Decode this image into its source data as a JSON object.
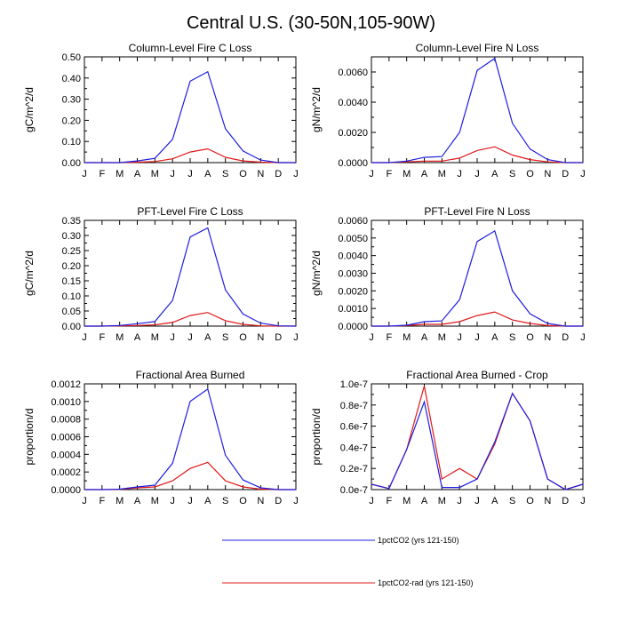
{
  "title": "Central U.S. (30-50N,105-90W)",
  "legend": [
    {
      "label": "1pctCO2 (yrs 121-150)",
      "color": "#1f1fdf"
    },
    {
      "label": "1pctCO2-rad (yrs 121-150)",
      "color": "#e01818"
    }
  ],
  "chart_data": [
    {
      "type": "line",
      "title": "Column-Level Fire C Loss",
      "ylabel": "gC/m^2/d",
      "xticks": [
        "J",
        "F",
        "M",
        "A",
        "M",
        "J",
        "J",
        "A",
        "S",
        "O",
        "N",
        "D",
        "J"
      ],
      "yticks": [
        "0.00",
        "0.10",
        "0.20",
        "0.30",
        "0.40",
        "0.50"
      ],
      "ylim": [
        0,
        0.5
      ],
      "series": [
        {
          "name": "1pctCO2 (yrs 121-150)",
          "color": "#1f1fdf",
          "values": [
            0,
            0,
            0,
            0.008,
            0.02,
            0.11,
            0.385,
            0.43,
            0.16,
            0.055,
            0.012,
            0,
            0
          ]
        },
        {
          "name": "1pctCO2-rad (yrs 121-150)",
          "color": "#e01818",
          "values": [
            0,
            0,
            0,
            0.002,
            0.005,
            0.018,
            0.05,
            0.065,
            0.025,
            0.008,
            0.002,
            0,
            0
          ]
        }
      ]
    },
    {
      "type": "line",
      "title": "Column-Level Fire N Loss",
      "ylabel": "gN/m^2/d",
      "xticks": [
        "J",
        "F",
        "M",
        "A",
        "M",
        "J",
        "J",
        "A",
        "S",
        "O",
        "N",
        "D",
        "J"
      ],
      "yticks": [
        "0.0000",
        "0.0020",
        "0.0040",
        "0.0060"
      ],
      "ylim": [
        0,
        0.007
      ],
      "series": [
        {
          "name": "1pctCO2 (yrs 121-150)",
          "color": "#1f1fdf",
          "values": [
            0,
            0,
            0.0001,
            0.00035,
            0.0004,
            0.002,
            0.0061,
            0.0069,
            0.0026,
            0.0009,
            0.0002,
            0,
            0
          ]
        },
        {
          "name": "1pctCO2-rad (yrs 121-150)",
          "color": "#e01818",
          "values": [
            0,
            0,
            5e-05,
            0.0001,
            0.0001,
            0.0003,
            0.0008,
            0.00105,
            0.0005,
            0.0002,
            5e-05,
            0,
            0
          ]
        }
      ]
    },
    {
      "type": "line",
      "title": "PFT-Level Fire C Loss",
      "ylabel": "gC/m^2/d",
      "xticks": [
        "J",
        "F",
        "M",
        "A",
        "M",
        "J",
        "J",
        "A",
        "S",
        "O",
        "N",
        "D",
        "J"
      ],
      "yticks": [
        "0.00",
        "0.05",
        "0.10",
        "0.15",
        "0.20",
        "0.25",
        "0.30",
        "0.35"
      ],
      "ylim": [
        0,
        0.35
      ],
      "series": [
        {
          "name": "1pctCO2 (yrs 121-150)",
          "color": "#1f1fdf",
          "values": [
            0,
            0,
            0.002,
            0.008,
            0.015,
            0.085,
            0.295,
            0.325,
            0.12,
            0.04,
            0.01,
            0.001,
            0
          ]
        },
        {
          "name": "1pctCO2-rad (yrs 121-150)",
          "color": "#e01818",
          "values": [
            0,
            0,
            0.001,
            0.002,
            0.004,
            0.012,
            0.035,
            0.045,
            0.018,
            0.006,
            0.001,
            0,
            0
          ]
        }
      ]
    },
    {
      "type": "line",
      "title": "PFT-Level Fire N Loss",
      "ylabel": "gN/m^2/d",
      "xticks": [
        "J",
        "F",
        "M",
        "A",
        "M",
        "J",
        "J",
        "A",
        "S",
        "O",
        "N",
        "D",
        "J"
      ],
      "yticks": [
        "0.0000",
        "0.0010",
        "0.0020",
        "0.0030",
        "0.0040",
        "0.0050",
        "0.0060"
      ],
      "ylim": [
        0,
        0.006
      ],
      "series": [
        {
          "name": "1pctCO2 (yrs 121-150)",
          "color": "#1f1fdf",
          "values": [
            0,
            0,
            5e-05,
            0.00025,
            0.0003,
            0.0015,
            0.0048,
            0.0054,
            0.002,
            0.0007,
            0.00015,
            0,
            0
          ]
        },
        {
          "name": "1pctCO2-rad (yrs 121-150)",
          "color": "#e01818",
          "values": [
            0,
            0,
            3e-05,
            0.0001,
            0.0001,
            0.00025,
            0.0006,
            0.0008,
            0.00035,
            0.00015,
            3e-05,
            0,
            0
          ]
        }
      ]
    },
    {
      "type": "line",
      "title": "Fractional Area Burned",
      "ylabel": "proportion/d",
      "xticks": [
        "J",
        "F",
        "M",
        "A",
        "M",
        "J",
        "J",
        "A",
        "S",
        "O",
        "N",
        "D",
        "J"
      ],
      "yticks": [
        "0.0000",
        "0.0002",
        "0.0004",
        "0.0006",
        "0.0008",
        "0.0010",
        "0.0012"
      ],
      "ylim": [
        0,
        0.0012
      ],
      "series": [
        {
          "name": "1pctCO2 (yrs 121-150)",
          "color": "#1f1fdf",
          "values": [
            0,
            0,
            5e-06,
            3e-05,
            5e-05,
            0.0003,
            0.001,
            0.00114,
            0.00039,
            0.00011,
            2e-05,
            0,
            0
          ]
        },
        {
          "name": "1pctCO2-rad (yrs 121-150)",
          "color": "#e01818",
          "values": [
            0,
            0,
            2e-06,
            2e-05,
            3e-05,
            0.0001,
            0.00024,
            0.00031,
            0.0001,
            3e-05,
            5e-06,
            0,
            0
          ]
        }
      ]
    },
    {
      "type": "line",
      "title": "Fractional Area Burned - Crop",
      "ylabel": "proportion/d",
      "xticks": [
        "J",
        "F",
        "M",
        "A",
        "M",
        "J",
        "J",
        "A",
        "S",
        "O",
        "N",
        "D",
        "J"
      ],
      "yticks": [
        "0.0e-7",
        "0.2e-7",
        "0.4e-7",
        "0.6e-7",
        "0.8e-7",
        "1.0e-7"
      ],
      "ylim": [
        0,
        1e-07
      ],
      "series": [
        {
          "name": "1pctCO2 (yrs 121-150)",
          "color": "#1f1fdf",
          "values": [
            5e-09,
            1e-09,
            3.8e-08,
            8.3e-08,
            2e-09,
            2e-09,
            1e-08,
            4.5e-08,
            9.1e-08,
            6.5e-08,
            1e-08,
            0,
            5e-09
          ]
        },
        {
          "name": "1pctCO2-rad (yrs 121-150)",
          "color": "#e01818",
          "values": [
            5e-09,
            1e-09,
            3.8e-08,
            9.8e-08,
            1e-08,
            2e-08,
            1e-08,
            4.3e-08,
            9.1e-08,
            6.5e-08,
            1e-08,
            0,
            5e-09
          ]
        }
      ]
    }
  ]
}
